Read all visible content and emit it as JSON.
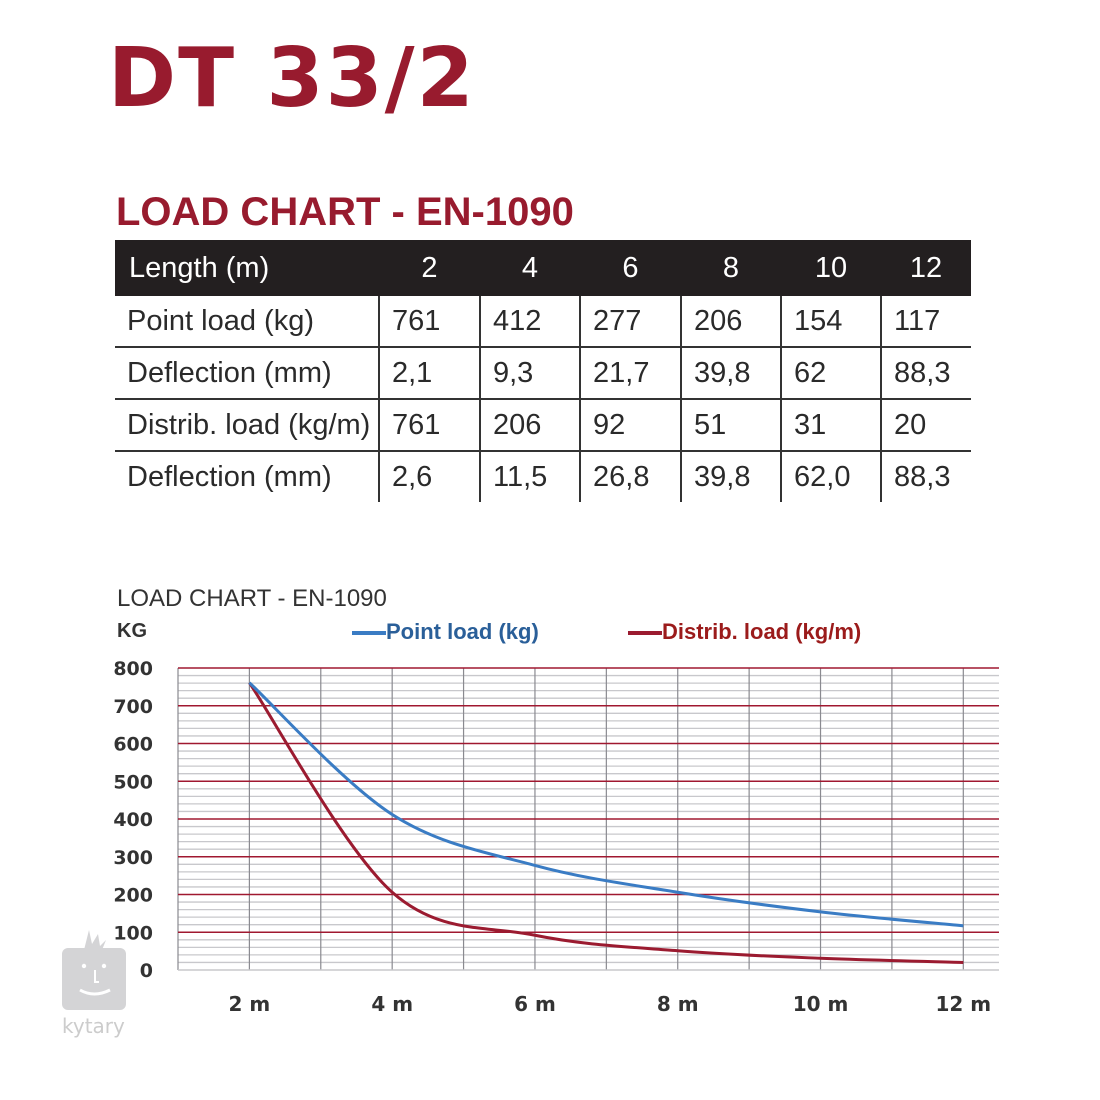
{
  "title": "DT 33/2",
  "subtitle": "LOAD CHART - EN-1090",
  "table": {
    "header": [
      "Length (m)",
      "2",
      "4",
      "6",
      "8",
      "10",
      "12"
    ],
    "rows": [
      [
        "Point load (kg)",
        "761",
        "412",
        "277",
        "206",
        "154",
        "117"
      ],
      [
        "Deflection (mm)",
        "2,1",
        "9,3",
        "21,7",
        "39,8",
        "62",
        "88,3"
      ],
      [
        "Distrib. load (kg/m)",
        "761",
        "206",
        "92",
        "51",
        "31",
        "20"
      ],
      [
        "Deflection (mm)",
        "2,6",
        "11,5",
        "26,8",
        "39,8",
        "62,0",
        "88,3"
      ]
    ]
  },
  "watermark": "kytary",
  "chart_data": {
    "type": "line",
    "title": "LOAD CHART - EN-1090",
    "ylabel": "KG",
    "x": [
      2,
      4,
      6,
      8,
      10,
      12
    ],
    "xtick_labels": [
      "2 m",
      "4 m",
      "6 m",
      "8 m",
      "10 m",
      "12 m"
    ],
    "yticks": [
      800,
      700,
      600,
      500,
      400,
      300,
      200,
      100,
      0
    ],
    "ylim": [
      0,
      800
    ],
    "xlim": [
      1,
      12.5
    ],
    "grid": true,
    "legend": "top",
    "series": [
      {
        "name": "Point load (kg)",
        "color": "#3a7cc4",
        "values": [
          761,
          412,
          277,
          206,
          154,
          117
        ]
      },
      {
        "name": "Distrib. load (kg/m)",
        "color": "#9b1b30",
        "values": [
          761,
          206,
          92,
          51,
          31,
          20
        ]
      }
    ]
  }
}
